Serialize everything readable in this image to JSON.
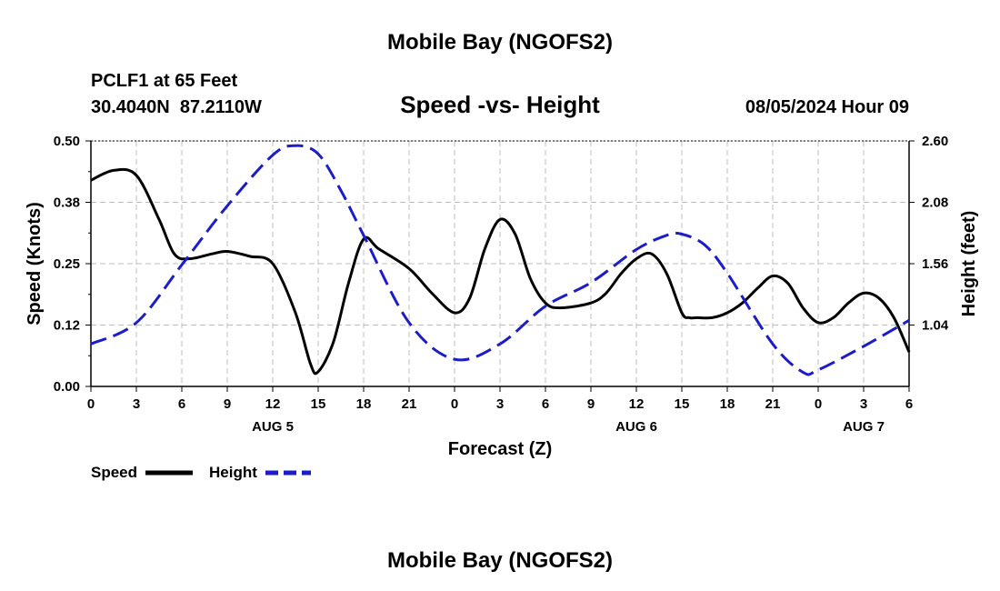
{
  "page": {
    "title_top": "Mobile Bay (NGOFS2)",
    "title_bottom": "Mobile Bay (NGOFS2)",
    "station_line": "PCLF1 at 65 Feet",
    "coords_line": "30.4040N  87.2110W",
    "datetime": "08/05/2024 Hour 09"
  },
  "chart_data": {
    "type": "line",
    "title": "Speed -vs- Height",
    "xlabel": "Forecast (Z)",
    "ylabel_left": "Speed (Knots)",
    "ylabel_right": "Height (feet)",
    "x_range_hours": [
      0,
      54
    ],
    "x_tick_labels": [
      "0",
      "3",
      "6",
      "9",
      "12",
      "15",
      "18",
      "21",
      "0",
      "3",
      "6",
      "9",
      "12",
      "15",
      "18",
      "21",
      "0",
      "3",
      "6"
    ],
    "day_labels": [
      {
        "hour": 12,
        "label": "AUG 5"
      },
      {
        "hour": 36,
        "label": "AUG 6"
      },
      {
        "hour": 51,
        "label": "AUG 7"
      }
    ],
    "y_left": {
      "range": [
        0,
        0.5
      ],
      "ticks": [
        "0.00",
        "0.12",
        "0.25",
        "0.38",
        "0.50"
      ],
      "tick_values": [
        0,
        0.125,
        0.25,
        0.375,
        0.5
      ]
    },
    "y_right": {
      "range": [
        0.52,
        2.6
      ],
      "ticks": [
        "1.04",
        "1.56",
        "2.08",
        "2.60"
      ],
      "tick_values": [
        1.04,
        1.56,
        2.08,
        2.6
      ]
    },
    "grid": true,
    "series": [
      {
        "name": "Speed",
        "axis": "left",
        "color": "#000000",
        "style": "solid",
        "x": [
          0,
          1.5,
          3,
          4.5,
          5.5,
          6.5,
          8,
          9,
          10.5,
          12,
          13.5,
          14.5,
          15,
          16,
          17,
          18,
          19,
          21,
          22.5,
          24,
          25,
          26,
          27,
          28,
          29,
          30,
          31,
          33,
          34,
          35,
          36,
          37,
          38,
          39,
          39.5,
          40,
          41,
          42,
          43,
          44,
          45,
          46,
          47,
          48,
          49,
          50,
          51,
          52,
          53,
          54
        ],
        "values": [
          0.42,
          0.44,
          0.43,
          0.34,
          0.27,
          0.26,
          0.27,
          0.275,
          0.265,
          0.25,
          0.15,
          0.045,
          0.03,
          0.09,
          0.21,
          0.3,
          0.28,
          0.24,
          0.19,
          0.15,
          0.18,
          0.28,
          0.34,
          0.31,
          0.22,
          0.17,
          0.16,
          0.17,
          0.19,
          0.23,
          0.26,
          0.27,
          0.23,
          0.15,
          0.14,
          0.14,
          0.14,
          0.15,
          0.17,
          0.2,
          0.225,
          0.21,
          0.16,
          0.13,
          0.14,
          0.17,
          0.19,
          0.18,
          0.14,
          0.07
        ]
      },
      {
        "name": "Height",
        "axis": "right",
        "color": "#1c1cc8",
        "style": "dashed",
        "x": [
          0,
          3,
          6,
          9,
          12,
          13.5,
          15,
          16.5,
          18,
          21,
          24,
          27,
          30,
          33,
          36,
          38,
          39,
          40.5,
          42,
          45,
          47,
          48,
          51,
          54
        ],
        "values": [
          0.88,
          1.06,
          1.55,
          2.05,
          2.48,
          2.56,
          2.49,
          2.18,
          1.8,
          1.06,
          0.75,
          0.88,
          1.2,
          1.4,
          1.68,
          1.8,
          1.81,
          1.72,
          1.48,
          0.88,
          0.64,
          0.66,
          0.86,
          1.08
        ]
      }
    ],
    "legend": {
      "placement": "bottom-left",
      "entries": [
        "Speed",
        "Height"
      ]
    }
  }
}
